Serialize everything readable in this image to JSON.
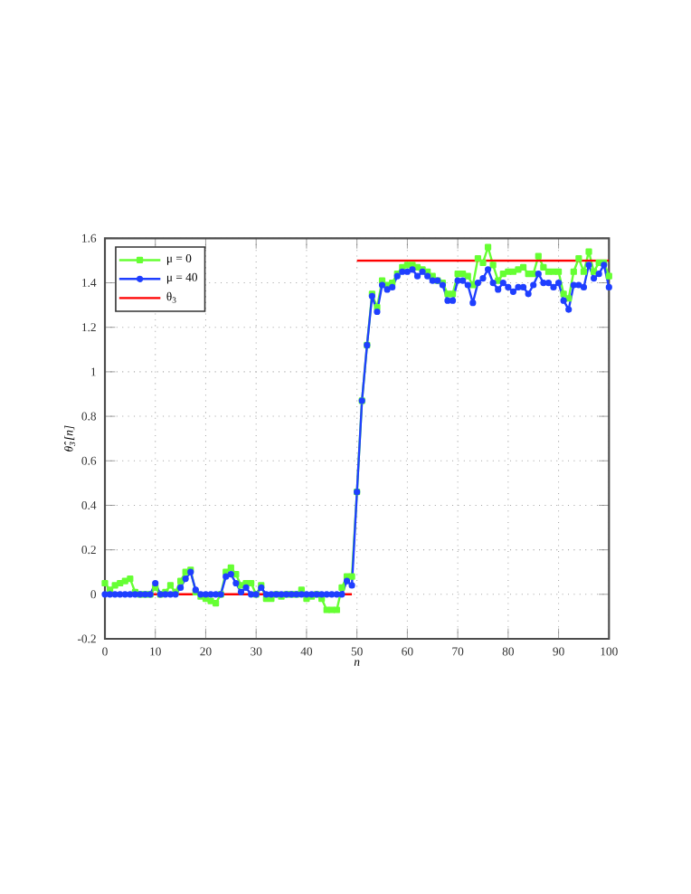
{
  "chart_data": {
    "type": "line",
    "xlabel": "n",
    "ylabel": "θ̂$_{3}$[n]",
    "x": [
      0,
      1,
      2,
      3,
      4,
      5,
      6,
      7,
      8,
      9,
      10,
      11,
      12,
      13,
      14,
      15,
      16,
      17,
      18,
      19,
      20,
      21,
      22,
      23,
      24,
      25,
      26,
      27,
      28,
      29,
      30,
      31,
      32,
      33,
      34,
      35,
      36,
      37,
      38,
      39,
      40,
      41,
      42,
      43,
      44,
      45,
      46,
      47,
      48,
      49,
      50,
      51,
      52,
      53,
      54,
      55,
      56,
      57,
      58,
      59,
      60,
      61,
      62,
      63,
      64,
      65,
      66,
      67,
      68,
      69,
      70,
      71,
      72,
      73,
      74,
      75,
      76,
      77,
      78,
      79,
      80,
      81,
      82,
      83,
      84,
      85,
      86,
      87,
      88,
      89,
      90,
      91,
      92,
      93,
      94,
      95,
      96,
      97,
      98,
      99,
      100
    ],
    "xlim": [
      0,
      100
    ],
    "ylim": [
      -0.2,
      1.6
    ],
    "xticks": [
      0,
      10,
      20,
      30,
      40,
      50,
      60,
      70,
      80,
      90,
      100
    ],
    "yticks": [
      -0.2,
      0,
      0.2,
      0.4,
      0.6,
      0.8,
      1,
      1.2,
      1.4,
      1.6
    ],
    "grid": true,
    "legend": "top left",
    "line_style": "solid",
    "series": [
      {
        "name": "μ = 0",
        "color": "#66ff33",
        "marker": "square",
        "values": [
          0.05,
          0.02,
          0.04,
          0.05,
          0.06,
          0.07,
          0.01,
          0,
          0,
          0,
          0.03,
          0,
          0.01,
          0.04,
          0.01,
          0.06,
          0.1,
          0.11,
          0.01,
          -0.01,
          -0.02,
          -0.03,
          -0.04,
          0,
          0.1,
          0.12,
          0.09,
          0.04,
          0.05,
          0.05,
          0,
          0.04,
          -0.02,
          -0.02,
          0,
          -0.01,
          0,
          0,
          0,
          0.02,
          -0.02,
          -0.01,
          0,
          -0.02,
          -0.07,
          -0.07,
          -0.07,
          0.03,
          0.08,
          0.08,
          0.46,
          0.87,
          1.12,
          1.35,
          1.29,
          1.41,
          1.39,
          1.4,
          1.44,
          1.47,
          1.48,
          1.48,
          1.47,
          1.46,
          1.45,
          1.43,
          1.41,
          1.4,
          1.35,
          1.35,
          1.44,
          1.44,
          1.43,
          1.39,
          1.51,
          1.49,
          1.56,
          1.48,
          1.41,
          1.44,
          1.45,
          1.45,
          1.46,
          1.47,
          1.44,
          1.44,
          1.52,
          1.47,
          1.45,
          1.45,
          1.45,
          1.35,
          1.33,
          1.45,
          1.51,
          1.45,
          1.54,
          1.45,
          1.49,
          1.49,
          1.43
        ]
      },
      {
        "name": "μ = 40",
        "color": "#1f3fff",
        "marker": "circle",
        "values": [
          0,
          0,
          0,
          0,
          0,
          0,
          0,
          0,
          0,
          0,
          0.05,
          0,
          0,
          0,
          0,
          0.03,
          0.07,
          0.1,
          0.02,
          0,
          0,
          0,
          0,
          0,
          0.08,
          0.09,
          0.05,
          0.01,
          0.03,
          0,
          0,
          0.03,
          0,
          0,
          0,
          0,
          0,
          0,
          0,
          0,
          0,
          0,
          0,
          0,
          0,
          0,
          0,
          0,
          0.06,
          0.04,
          0.46,
          0.87,
          1.12,
          1.34,
          1.27,
          1.39,
          1.37,
          1.38,
          1.43,
          1.45,
          1.45,
          1.46,
          1.43,
          1.45,
          1.43,
          1.41,
          1.41,
          1.39,
          1.32,
          1.32,
          1.41,
          1.41,
          1.39,
          1.31,
          1.4,
          1.42,
          1.46,
          1.4,
          1.37,
          1.4,
          1.38,
          1.36,
          1.38,
          1.38,
          1.35,
          1.39,
          1.44,
          1.4,
          1.4,
          1.38,
          1.4,
          1.32,
          1.28,
          1.39,
          1.39,
          1.38,
          1.48,
          1.42,
          1.44,
          1.48,
          1.38
        ]
      },
      {
        "name": "θ$_{3}$",
        "color": "#ff0000",
        "marker": "none",
        "x": [
          0,
          49,
          49.5,
          50,
          100
        ],
        "values": [
          0,
          0,
          null,
          1.5,
          1.5
        ]
      }
    ]
  }
}
